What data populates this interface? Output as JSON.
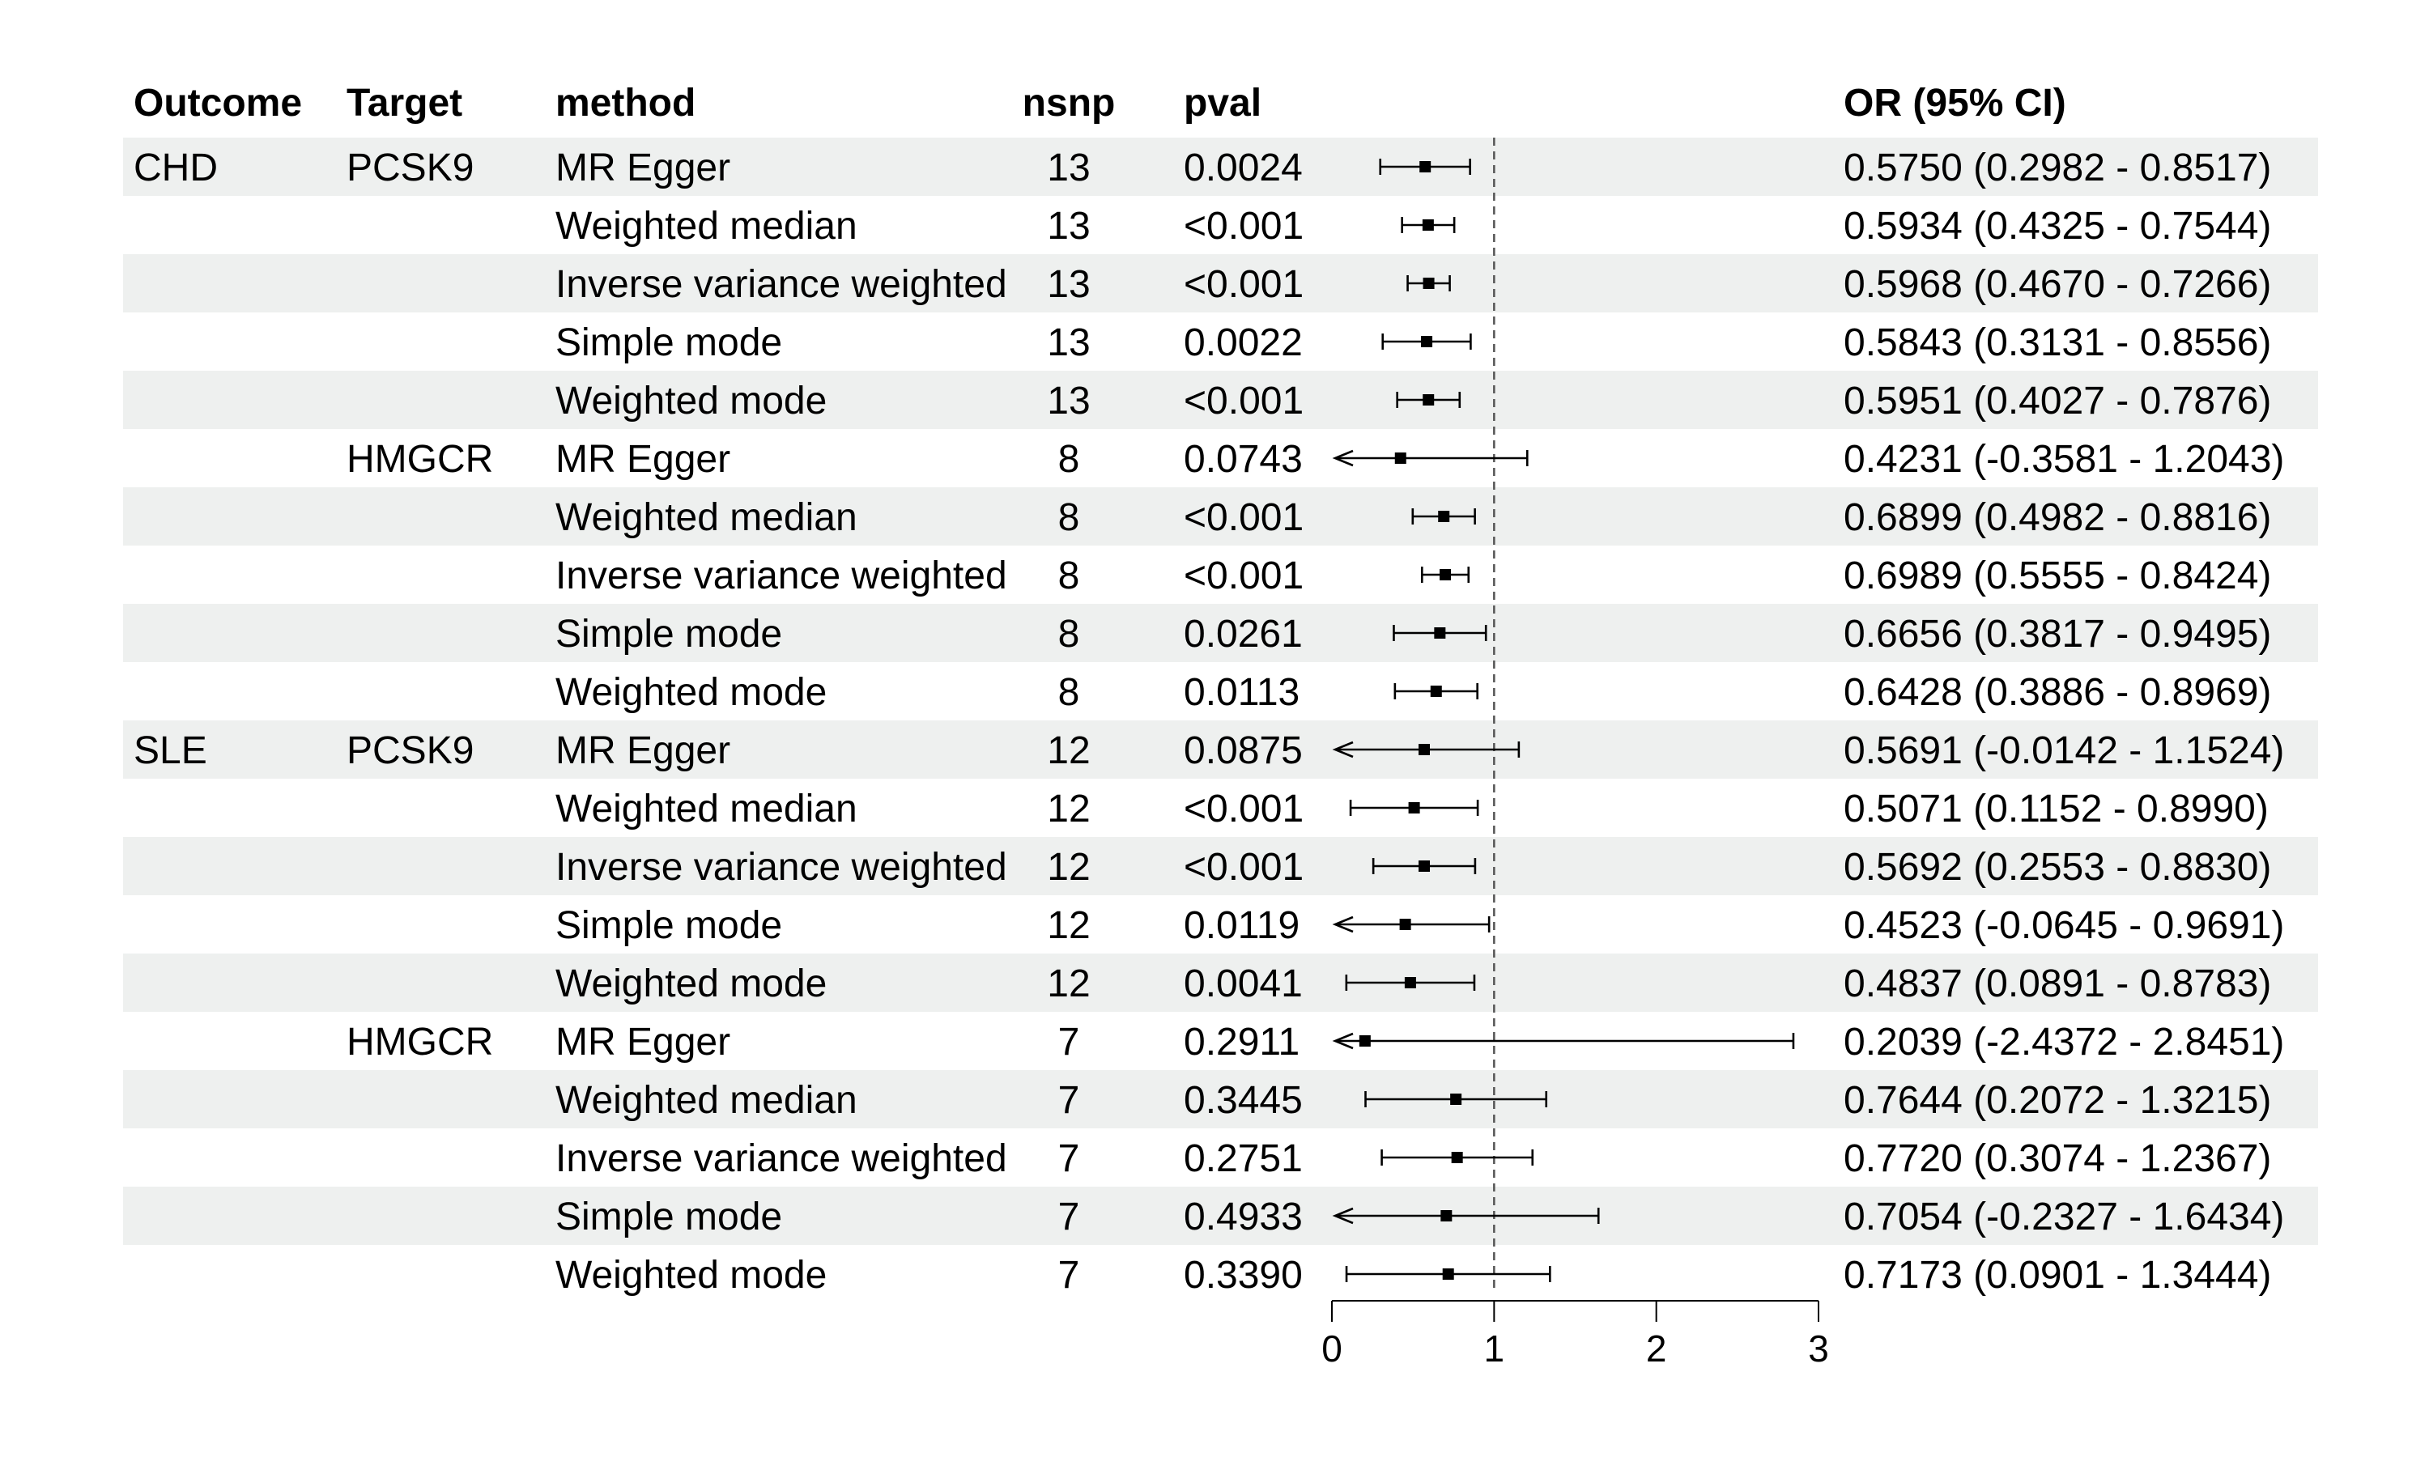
{
  "chart_data": {
    "type": "forest",
    "columns": {
      "outcome": "Outcome",
      "target": "Target",
      "method": "method",
      "nsnp": "nsnp",
      "pval": "pval",
      "or_ci": "OR (95% CI)"
    },
    "reference_line": 1,
    "xlim": [
      0,
      3
    ],
    "x_ticks": [
      0,
      1,
      2,
      3
    ],
    "x_tick_labels": [
      "0",
      "1",
      "2",
      "3"
    ],
    "rows": [
      {
        "outcome": "CHD",
        "target": "PCSK9",
        "method": "MR Egger",
        "nsnp": "13",
        "pval": "0.0024",
        "or": 0.575,
        "lower": 0.2982,
        "upper": 0.8517,
        "label": "0.5750 (0.2982 - 0.8517)"
      },
      {
        "outcome": "",
        "target": "",
        "method": "Weighted median",
        "nsnp": "13",
        "pval": "<0.001",
        "or": 0.5934,
        "lower": 0.4325,
        "upper": 0.7544,
        "label": "0.5934 (0.4325 - 0.7544)"
      },
      {
        "outcome": "",
        "target": "",
        "method": "Inverse variance weighted",
        "nsnp": "13",
        "pval": "<0.001",
        "or": 0.5968,
        "lower": 0.467,
        "upper": 0.7266,
        "label": "0.5968 (0.4670 - 0.7266)"
      },
      {
        "outcome": "",
        "target": "",
        "method": "Simple mode",
        "nsnp": "13",
        "pval": "0.0022",
        "or": 0.5843,
        "lower": 0.3131,
        "upper": 0.8556,
        "label": "0.5843 (0.3131 - 0.8556)"
      },
      {
        "outcome": "",
        "target": "",
        "method": "Weighted mode",
        "nsnp": "13",
        "pval": "<0.001",
        "or": 0.5951,
        "lower": 0.4027,
        "upper": 0.7876,
        "label": "0.5951 (0.4027 - 0.7876)"
      },
      {
        "outcome": "",
        "target": "HMGCR",
        "method": "MR Egger",
        "nsnp": "8",
        "pval": "0.0743",
        "or": 0.4231,
        "lower": -0.3581,
        "upper": 1.2043,
        "label": "0.4231 (-0.3581 - 1.2043)"
      },
      {
        "outcome": "",
        "target": "",
        "method": "Weighted median",
        "nsnp": "8",
        "pval": "<0.001",
        "or": 0.6899,
        "lower": 0.4982,
        "upper": 0.8816,
        "label": "0.6899 (0.4982 - 0.8816)"
      },
      {
        "outcome": "",
        "target": "",
        "method": "Inverse variance weighted",
        "nsnp": "8",
        "pval": "<0.001",
        "or": 0.6989,
        "lower": 0.5555,
        "upper": 0.8424,
        "label": "0.6989 (0.5555 - 0.8424)"
      },
      {
        "outcome": "",
        "target": "",
        "method": "Simple mode",
        "nsnp": "8",
        "pval": "0.0261",
        "or": 0.6656,
        "lower": 0.3817,
        "upper": 0.9495,
        "label": "0.6656 (0.3817 - 0.9495)"
      },
      {
        "outcome": "",
        "target": "",
        "method": "Weighted mode",
        "nsnp": "8",
        "pval": "0.0113",
        "or": 0.6428,
        "lower": 0.3886,
        "upper": 0.8969,
        "label": "0.6428 (0.3886 - 0.8969)"
      },
      {
        "outcome": "SLE",
        "target": "PCSK9",
        "method": "MR Egger",
        "nsnp": "12",
        "pval": "0.0875",
        "or": 0.5691,
        "lower": -0.0142,
        "upper": 1.1524,
        "label": "0.5691 (-0.0142 - 1.1524)"
      },
      {
        "outcome": "",
        "target": "",
        "method": "Weighted median",
        "nsnp": "12",
        "pval": "<0.001",
        "or": 0.5071,
        "lower": 0.1152,
        "upper": 0.899,
        "label": "0.5071 (0.1152 - 0.8990)"
      },
      {
        "outcome": "",
        "target": "",
        "method": "Inverse variance weighted",
        "nsnp": "12",
        "pval": "<0.001",
        "or": 0.5692,
        "lower": 0.2553,
        "upper": 0.883,
        "label": "0.5692 (0.2553 - 0.8830)"
      },
      {
        "outcome": "",
        "target": "",
        "method": "Simple mode",
        "nsnp": "12",
        "pval": "0.0119",
        "or": 0.4523,
        "lower": -0.0645,
        "upper": 0.9691,
        "label": "0.4523 (-0.0645 - 0.9691)"
      },
      {
        "outcome": "",
        "target": "",
        "method": "Weighted mode",
        "nsnp": "12",
        "pval": "0.0041",
        "or": 0.4837,
        "lower": 0.0891,
        "upper": 0.8783,
        "label": "0.4837 (0.0891 - 0.8783)"
      },
      {
        "outcome": "",
        "target": "HMGCR",
        "method": "MR Egger",
        "nsnp": "7",
        "pval": "0.2911",
        "or": 0.2039,
        "lower": -2.4372,
        "upper": 2.8451,
        "label": "0.2039 (-2.4372 - 2.8451)"
      },
      {
        "outcome": "",
        "target": "",
        "method": "Weighted median",
        "nsnp": "7",
        "pval": "0.3445",
        "or": 0.7644,
        "lower": 0.2072,
        "upper": 1.3215,
        "label": "0.7644 (0.2072 - 1.3215)"
      },
      {
        "outcome": "",
        "target": "",
        "method": "Inverse variance weighted",
        "nsnp": "7",
        "pval": "0.2751",
        "or": 0.772,
        "lower": 0.3074,
        "upper": 1.2367,
        "label": "0.7720 (0.3074 - 1.2367)"
      },
      {
        "outcome": "",
        "target": "",
        "method": "Simple mode",
        "nsnp": "7",
        "pval": "0.4933",
        "or": 0.7054,
        "lower": -0.2327,
        "upper": 1.6434,
        "label": "0.7054 (-0.2327 - 1.6434)"
      },
      {
        "outcome": "",
        "target": "",
        "method": "Weighted mode",
        "nsnp": "7",
        "pval": "0.3390",
        "or": 0.7173,
        "lower": 0.0901,
        "upper": 1.3444,
        "label": "0.7173 (0.0901 - 1.3444)"
      }
    ],
    "colors": {
      "stripe": "#eef0ef",
      "ink": "#000000",
      "reference": "#555555"
    }
  }
}
